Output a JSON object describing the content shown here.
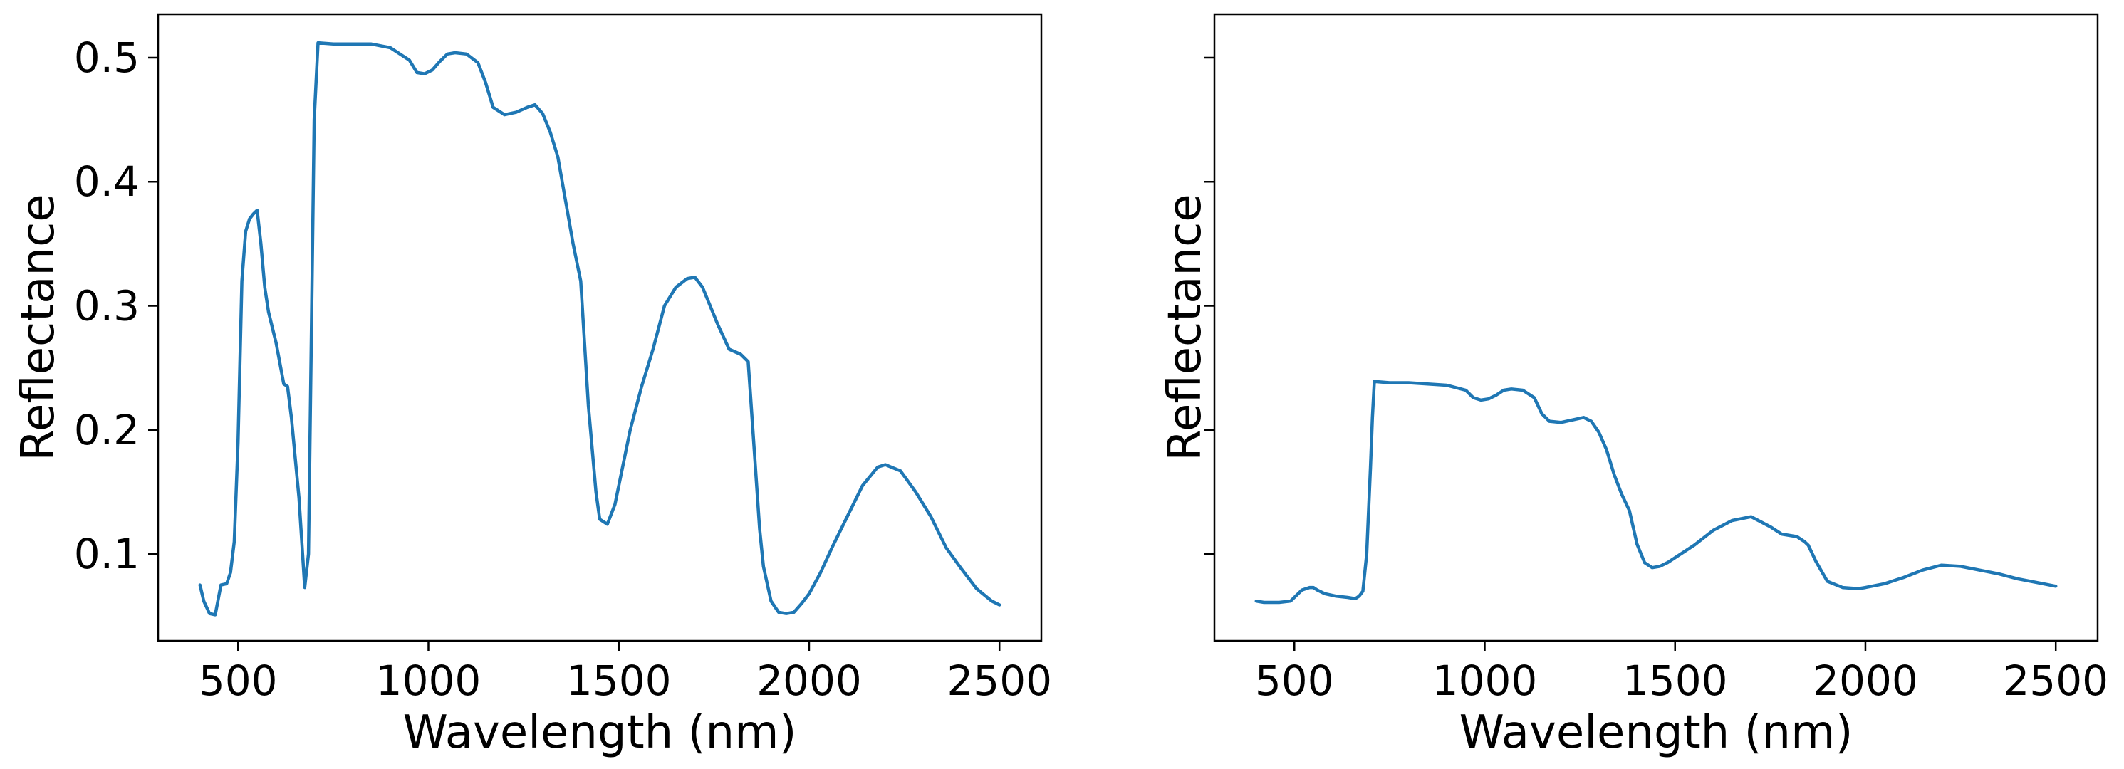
{
  "colors": {
    "series": "#1f77b4",
    "axes": "#000000",
    "background": "#ffffff"
  },
  "chart_data": [
    {
      "type": "line",
      "title": "",
      "xlabel": "Wavelength (nm)",
      "ylabel": "Reflectance",
      "xlim": [
        290,
        2610
      ],
      "ylim": [
        0.03,
        0.535
      ],
      "xticks": [
        500,
        1000,
        1500,
        2000,
        2500
      ],
      "xtick_labels": [
        "500",
        "1000",
        "1500",
        "2000",
        "2500"
      ],
      "yticks": [
        0.1,
        0.2,
        0.3,
        0.4,
        0.5
      ],
      "ytick_labels": [
        "0.1",
        "0.2",
        "0.3",
        "0.4",
        "0.5"
      ],
      "grid": false,
      "series": [
        {
          "x": [
            400,
            410,
            425,
            440,
            455,
            470,
            480,
            490,
            500,
            510,
            520,
            530,
            540,
            550,
            560,
            570,
            580,
            600,
            620,
            630,
            640,
            660,
            675,
            685,
            700,
            710,
            750,
            800,
            850,
            900,
            950,
            970,
            990,
            1010,
            1030,
            1050,
            1070,
            1100,
            1130,
            1150,
            1170,
            1200,
            1230,
            1260,
            1280,
            1300,
            1320,
            1340,
            1360,
            1380,
            1400,
            1420,
            1440,
            1450,
            1470,
            1490,
            1510,
            1530,
            1560,
            1590,
            1620,
            1650,
            1680,
            1700,
            1720,
            1760,
            1790,
            1820,
            1840,
            1850,
            1870,
            1880,
            1900,
            1920,
            1940,
            1960,
            1980,
            2000,
            2030,
            2060,
            2100,
            2140,
            2180,
            2200,
            2240,
            2280,
            2320,
            2360,
            2400,
            2440,
            2480,
            2500
          ],
          "y": [
            0.075,
            0.062,
            0.052,
            0.051,
            0.075,
            0.076,
            0.085,
            0.11,
            0.19,
            0.32,
            0.36,
            0.37,
            0.374,
            0.377,
            0.35,
            0.315,
            0.295,
            0.27,
            0.237,
            0.235,
            0.21,
            0.145,
            0.073,
            0.1,
            0.45,
            0.512,
            0.511,
            0.511,
            0.511,
            0.508,
            0.498,
            0.488,
            0.487,
            0.49,
            0.497,
            0.503,
            0.504,
            0.503,
            0.496,
            0.48,
            0.46,
            0.454,
            0.456,
            0.46,
            0.462,
            0.455,
            0.44,
            0.42,
            0.385,
            0.35,
            0.32,
            0.22,
            0.15,
            0.128,
            0.124,
            0.14,
            0.17,
            0.2,
            0.235,
            0.265,
            0.3,
            0.315,
            0.322,
            0.323,
            0.315,
            0.285,
            0.265,
            0.261,
            0.255,
            0.21,
            0.12,
            0.09,
            0.062,
            0.053,
            0.052,
            0.053,
            0.06,
            0.068,
            0.085,
            0.105,
            0.13,
            0.155,
            0.17,
            0.172,
            0.167,
            0.15,
            0.13,
            0.105,
            0.088,
            0.072,
            0.062,
            0.059
          ]
        }
      ]
    },
    {
      "type": "line",
      "title": "",
      "xlabel": "Wavelength (nm)",
      "ylabel": "Reflectance",
      "xlim": [
        290,
        2610
      ],
      "ylim": [
        0.03,
        0.535
      ],
      "xticks": [
        500,
        1000,
        1500,
        2000,
        2500
      ],
      "xtick_labels": [
        "500",
        "1000",
        "1500",
        "2000",
        "2500"
      ],
      "yticks": [
        0.1,
        0.2,
        0.3,
        0.4,
        0.5
      ],
      "ytick_labels": [],
      "grid": false,
      "series": [
        {
          "x": [
            400,
            420,
            460,
            490,
            500,
            510,
            520,
            540,
            550,
            560,
            580,
            610,
            640,
            660,
            670,
            680,
            690,
            700,
            705,
            710,
            750,
            800,
            850,
            900,
            950,
            970,
            990,
            1010,
            1030,
            1050,
            1070,
            1100,
            1130,
            1150,
            1170,
            1200,
            1230,
            1260,
            1280,
            1300,
            1320,
            1340,
            1360,
            1380,
            1400,
            1420,
            1440,
            1460,
            1480,
            1500,
            1550,
            1600,
            1650,
            1700,
            1750,
            1780,
            1820,
            1840,
            1850,
            1870,
            1900,
            1940,
            1980,
            2000,
            2050,
            2100,
            2150,
            2200,
            2250,
            2300,
            2350,
            2400,
            2450,
            2500
          ],
          "y": [
            0.062,
            0.061,
            0.061,
            0.062,
            0.065,
            0.068,
            0.071,
            0.073,
            0.073,
            0.071,
            0.068,
            0.066,
            0.065,
            0.064,
            0.066,
            0.07,
            0.1,
            0.17,
            0.21,
            0.239,
            0.238,
            0.238,
            0.237,
            0.236,
            0.232,
            0.226,
            0.224,
            0.225,
            0.228,
            0.232,
            0.233,
            0.232,
            0.226,
            0.213,
            0.207,
            0.206,
            0.208,
            0.21,
            0.207,
            0.198,
            0.184,
            0.164,
            0.148,
            0.135,
            0.108,
            0.093,
            0.089,
            0.09,
            0.093,
            0.097,
            0.107,
            0.119,
            0.127,
            0.13,
            0.122,
            0.116,
            0.114,
            0.11,
            0.107,
            0.094,
            0.078,
            0.073,
            0.072,
            0.073,
            0.076,
            0.081,
            0.087,
            0.091,
            0.09,
            0.087,
            0.084,
            0.08,
            0.077,
            0.074
          ]
        }
      ]
    }
  ]
}
